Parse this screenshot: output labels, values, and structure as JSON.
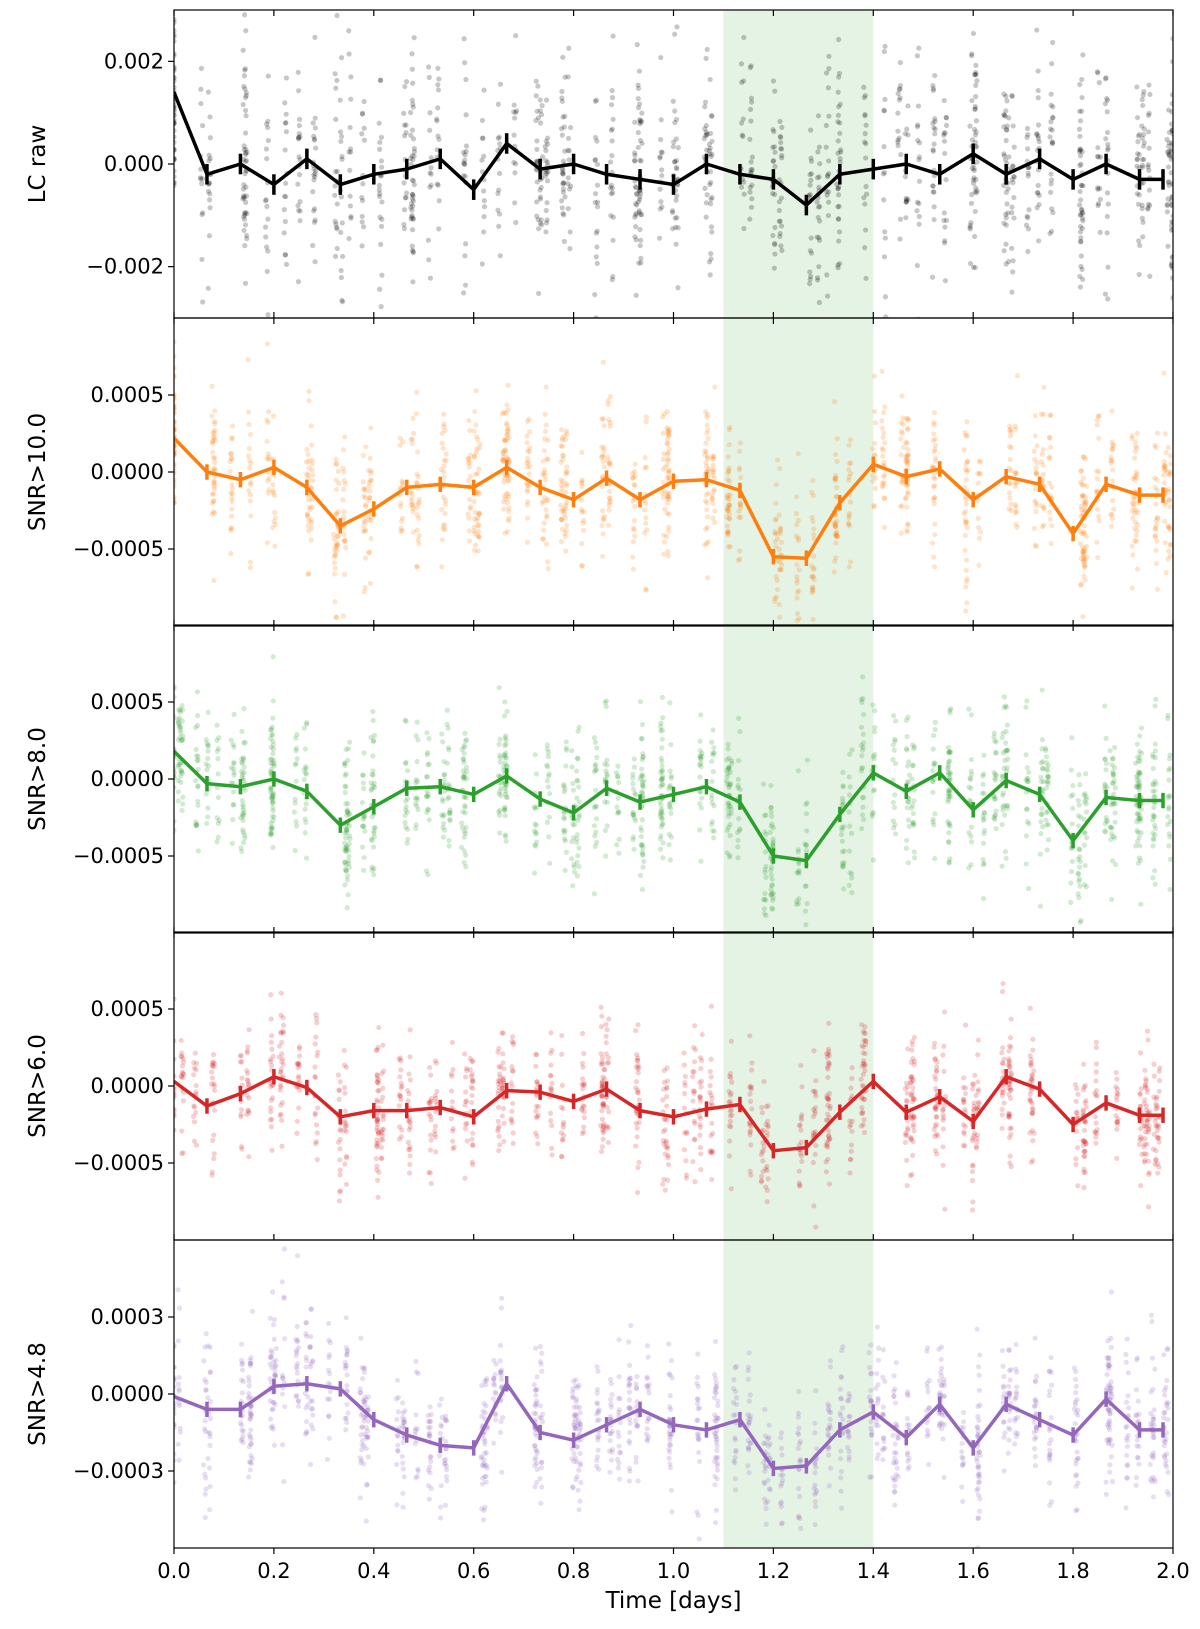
{
  "chart_data": {
    "type": "line",
    "shared_x": {
      "label": "Time [days]",
      "range": [
        0.0,
        2.0
      ],
      "ticks": [
        0.0,
        0.2,
        0.4,
        0.6,
        0.8,
        1.0,
        1.2,
        1.4,
        1.6,
        1.8,
        2.0
      ],
      "tick_labels": [
        "0.0",
        "0.2",
        "0.4",
        "0.6",
        "0.8",
        "1.0",
        "1.2",
        "1.4",
        "1.6",
        "1.8",
        "2.0"
      ]
    },
    "highlight_span": {
      "x_start": 1.1,
      "x_end": 1.4,
      "color": "#2ca02c"
    },
    "bin_x": [
      0.0,
      0.066,
      0.133,
      0.2,
      0.266,
      0.333,
      0.4,
      0.466,
      0.533,
      0.6,
      0.666,
      0.733,
      0.8,
      0.866,
      0.933,
      1.0,
      1.066,
      1.133,
      1.2,
      1.266,
      1.333,
      1.4,
      1.466,
      1.533,
      1.6,
      1.666,
      1.733,
      1.8,
      1.866,
      1.933,
      1.98
    ],
    "panels": [
      {
        "ylabel": "LC raw",
        "color": "#000000",
        "ylim": [
          -0.003,
          0.003
        ],
        "yticks": [
          -0.002,
          0.0,
          0.002
        ],
        "ytick_labels": [
          "−0.002",
          "0.000",
          "0.002"
        ],
        "scatter_spread": 0.0011,
        "errbar": 0.0002,
        "binned": [
          0.0014,
          -0.0002,
          0.0,
          -0.0004,
          0.0001,
          -0.0004,
          -0.0002,
          -0.0001,
          0.0001,
          -0.0005,
          0.0004,
          -0.0001,
          0.0,
          -0.0002,
          -0.0003,
          -0.0004,
          0.0,
          -0.0002,
          -0.0003,
          -0.0008,
          -0.0002,
          -0.0001,
          0.0,
          -0.0002,
          0.0002,
          -0.0002,
          0.0001,
          -0.0003,
          0.0,
          -0.0003,
          -0.0003
        ]
      },
      {
        "ylabel": "SNR>10.0",
        "color": "#ff7f0e",
        "ylim": [
          -0.001,
          0.001
        ],
        "yticks": [
          -0.0005,
          0.0,
          0.0005
        ],
        "ytick_labels": [
          "−0.0005",
          "0.0000",
          "0.0005"
        ],
        "scatter_spread": 0.00024,
        "errbar": 5e-05,
        "binned": [
          0.00022,
          0.0,
          -5e-05,
          3e-05,
          -0.0001,
          -0.00035,
          -0.00024,
          -0.0001,
          -8e-05,
          -0.0001,
          3e-05,
          -0.0001,
          -0.00018,
          -4e-05,
          -0.00018,
          -6e-05,
          -5e-05,
          -0.00012,
          -0.00055,
          -0.00056,
          -0.0002,
          5e-05,
          -3e-05,
          2e-05,
          -0.00018,
          -3e-05,
          -8e-05,
          -0.0004,
          -8e-05,
          -0.00015,
          -0.00015
        ]
      },
      {
        "ylabel": "SNR>8.0",
        "color": "#2ca02c",
        "ylim": [
          -0.001,
          0.001
        ],
        "yticks": [
          -0.0005,
          0.0,
          0.0005
        ],
        "ytick_labels": [
          "−0.0005",
          "0.0000",
          "0.0005"
        ],
        "scatter_spread": 0.00024,
        "errbar": 5e-05,
        "binned": [
          0.00018,
          -3e-05,
          -5e-05,
          0.0,
          -8e-05,
          -0.0003,
          -0.00018,
          -6e-05,
          -5e-05,
          -0.0001,
          2e-05,
          -0.00013,
          -0.00022,
          -6e-05,
          -0.00015,
          -0.0001,
          -5e-05,
          -0.00015,
          -0.0005,
          -0.00053,
          -0.00023,
          4e-05,
          -8e-05,
          4e-05,
          -0.0002,
          -1e-05,
          -0.0001,
          -0.0004,
          -0.00012,
          -0.00014,
          -0.00014
        ]
      },
      {
        "ylabel": "SNR>6.0",
        "color": "#d62728",
        "ylim": [
          -0.001,
          0.001
        ],
        "yticks": [
          -0.0005,
          0.0,
          0.0005
        ],
        "ytick_labels": [
          "−0.0005",
          "0.0000",
          "0.0005"
        ],
        "scatter_spread": 0.00022,
        "errbar": 5e-05,
        "binned": [
          3e-05,
          -0.00013,
          -5e-05,
          6e-05,
          -1e-05,
          -0.0002,
          -0.00016,
          -0.00016,
          -0.00014,
          -0.0002,
          -3e-05,
          -4e-05,
          -0.0001,
          -2e-05,
          -0.00016,
          -0.0002,
          -0.00015,
          -0.00012,
          -0.00042,
          -0.0004,
          -0.00017,
          3e-05,
          -0.00017,
          -7e-05,
          -0.00023,
          6e-05,
          -2e-05,
          -0.00025,
          -0.00011,
          -0.00019,
          -0.00019
        ]
      },
      {
        "ylabel": "SNR>4.8",
        "color": "#9467bd",
        "ylim": [
          -0.0006,
          0.0006
        ],
        "yticks": [
          -0.0003,
          0.0,
          0.0003
        ],
        "ytick_labels": [
          "−0.0003",
          "0.0000",
          "0.0003"
        ],
        "scatter_spread": 0.00014,
        "errbar": 3e-05,
        "binned": [
          -1e-05,
          -6e-05,
          -6e-05,
          3e-05,
          4e-05,
          2e-05,
          -0.0001,
          -0.00016,
          -0.0002,
          -0.00021,
          4e-05,
          -0.00015,
          -0.00018,
          -0.00012,
          -6e-05,
          -0.00012,
          -0.00014,
          -0.0001,
          -0.00029,
          -0.00028,
          -0.00014,
          -7e-05,
          -0.00017,
          -4e-05,
          -0.00021,
          -4e-05,
          -0.0001,
          -0.00016,
          -2e-05,
          -0.00014,
          -0.00014
        ]
      }
    ]
  }
}
